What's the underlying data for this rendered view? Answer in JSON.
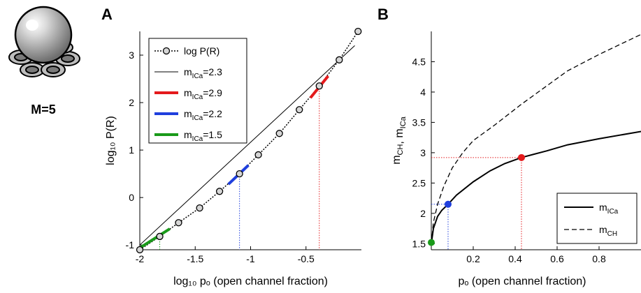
{
  "figure": {
    "icon_label": "M=5",
    "colors": {
      "red": "#e41a1c",
      "blue": "#1f3fdd",
      "green": "#1a9a1a",
      "black": "#000000"
    }
  },
  "chart_data": [
    {
      "panel": "A",
      "type": "line",
      "title": "",
      "xlabel": "log₁₀ pₒ (open channel fraction)",
      "ylabel": "log₁₀ P(R)",
      "xlim": [
        -2.0,
        0.0
      ],
      "ylim": [
        -1.1,
        3.5
      ],
      "xticks": [
        -2,
        -1.5,
        -1,
        -0.5
      ],
      "xtick_labels": [
        "-2",
        "-1.5",
        "-1",
        "-0.5"
      ],
      "yticks": [
        -1,
        0,
        1,
        2,
        3
      ],
      "ytick_labels": [
        "-1",
        "0",
        "1",
        "2",
        "3"
      ],
      "legend_position": "top-left",
      "series": [
        {
          "name": "log P(R)",
          "style": "dotted-circles",
          "color": "#000000",
          "x": [
            -2.0,
            -1.82,
            -1.65,
            -1.46,
            -1.28,
            -1.1,
            -0.93,
            -0.74,
            -0.56,
            -0.38,
            -0.2,
            -0.03
          ],
          "y": [
            -1.1,
            -0.82,
            -0.53,
            -0.22,
            0.13,
            0.5,
            0.9,
            1.35,
            1.85,
            2.35,
            2.9,
            3.5
          ]
        },
        {
          "name": "m",
          "name_sub": "ICa",
          "name_suffix": "=2.3",
          "style": "thin",
          "color": "#000000",
          "x": [
            -2.0,
            -0.06
          ],
          "y": [
            -1.0,
            3.2
          ]
        },
        {
          "name": "m",
          "name_sub": "ICa",
          "name_suffix": "=2.9",
          "style": "thick",
          "color": "#e41a1c",
          "x": [
            -0.46,
            -0.3
          ],
          "y": [
            2.1,
            2.56
          ]
        },
        {
          "name": "m",
          "name_sub": "ICa",
          "name_suffix": "=2.2",
          "style": "thick",
          "color": "#1f3fdd",
          "x": [
            -1.2,
            -1.02
          ],
          "y": [
            0.28,
            0.68
          ]
        },
        {
          "name": "m",
          "name_sub": "ICa",
          "name_suffix": "=1.5",
          "style": "thick",
          "color": "#1a9a1a",
          "x": [
            -2.0,
            -1.73
          ],
          "y": [
            -1.06,
            -0.66
          ]
        }
      ],
      "markers": [
        {
          "color": "#1f3fdd",
          "x": -1.1,
          "y": 0.5
        },
        {
          "color": "#e41a1c",
          "x": -0.38,
          "y": 2.35
        },
        {
          "color": "#1a9a1a",
          "x": -1.82,
          "y": -0.82
        }
      ]
    },
    {
      "panel": "B",
      "type": "line",
      "title": "",
      "xlabel": "pₒ (open channel fraction)",
      "ylabel": "m_CH, m_ICa",
      "xlim": [
        0.0,
        1.0
      ],
      "ylim": [
        1.4,
        5.0
      ],
      "xticks": [
        0.2,
        0.4,
        0.6,
        0.8
      ],
      "xtick_labels": [
        "0.2",
        "0.4",
        "0.6",
        "0.8"
      ],
      "yticks": [
        1.5,
        2,
        2.5,
        3,
        3.5,
        4,
        4.5
      ],
      "ytick_labels": [
        "1.5",
        "2",
        "2.5",
        "3",
        "3.5",
        "4",
        "4.5"
      ],
      "legend_position": "bottom-right",
      "series": [
        {
          "name": "m",
          "name_sub": "ICa",
          "style": "solid",
          "color": "#000000",
          "x": [
            0.0,
            0.01,
            0.03,
            0.05,
            0.08,
            0.12,
            0.2,
            0.28,
            0.35,
            0.43,
            0.55,
            0.65,
            0.8,
            1.0
          ],
          "y": [
            1.5,
            1.75,
            1.95,
            2.05,
            2.15,
            2.3,
            2.52,
            2.7,
            2.82,
            2.92,
            3.03,
            3.13,
            3.23,
            3.35
          ]
        },
        {
          "name": "m",
          "name_sub": "CH",
          "style": "dashed",
          "color": "#000000",
          "x": [
            0.0,
            0.01,
            0.03,
            0.06,
            0.1,
            0.15,
            0.2,
            0.3,
            0.43,
            0.55,
            0.65,
            0.8,
            1.0
          ],
          "y": [
            1.5,
            1.85,
            2.15,
            2.45,
            2.75,
            3.0,
            3.2,
            3.45,
            3.8,
            4.1,
            4.35,
            4.62,
            4.95
          ]
        }
      ],
      "markers": [
        {
          "color": "#1a9a1a",
          "x": 0.0,
          "y": 1.52
        },
        {
          "color": "#1f3fdd",
          "x": 0.08,
          "y": 2.15
        },
        {
          "color": "#e41a1c",
          "x": 0.43,
          "y": 2.92
        }
      ]
    }
  ]
}
